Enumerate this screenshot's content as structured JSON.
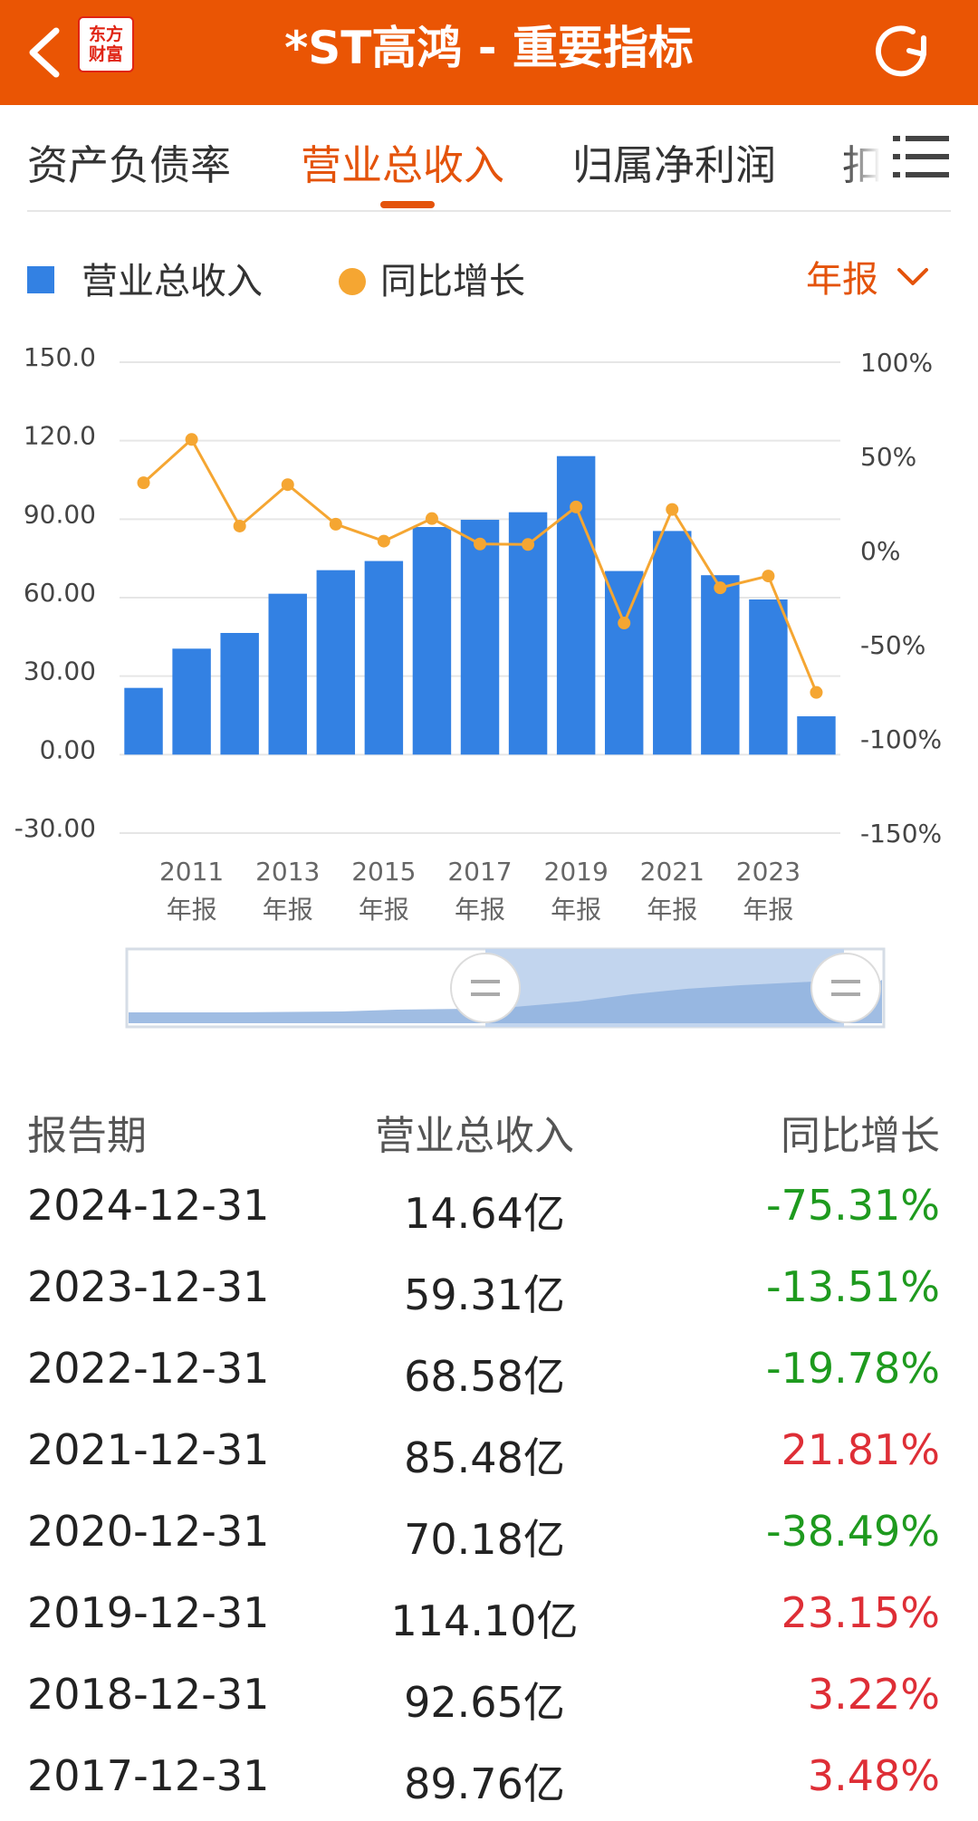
{
  "header": {
    "title": "*ST高鸿 - 重要指标",
    "logo_line1": "东方",
    "logo_line2": "财富"
  },
  "tabs": [
    {
      "label": "资产负债率",
      "active": false
    },
    {
      "label": "营业总收入",
      "active": true
    },
    {
      "label": "归属净利润",
      "active": false
    },
    {
      "label": "扣",
      "active": false
    }
  ],
  "legend": {
    "bar_label": "营业总收入",
    "line_label": "同比增长",
    "period": "年报"
  },
  "colors": {
    "accent": "#ea5504",
    "bar": "#3381e3",
    "line": "#f5a632",
    "positive": "#de2e36",
    "negative": "#1e9a1e"
  },
  "chart_data": {
    "type": "bar",
    "x": [
      "2010",
      "2011",
      "2012",
      "2013",
      "2014",
      "2015",
      "2016",
      "2017",
      "2018",
      "2019",
      "2020",
      "2021",
      "2022",
      "2023",
      "2024"
    ],
    "x_tick_labels": [
      {
        "year": "2011",
        "suffix": "年报"
      },
      {
        "year": "2013",
        "suffix": "年报"
      },
      {
        "year": "2015",
        "suffix": "年报"
      },
      {
        "year": "2017",
        "suffix": "年报"
      },
      {
        "year": "2019",
        "suffix": "年报"
      },
      {
        "year": "2021",
        "suffix": "年报"
      },
      {
        "year": "2023",
        "suffix": "年报"
      }
    ],
    "series": [
      {
        "name": "营业总收入",
        "type": "bar",
        "axis": "left",
        "values": [
          25.5,
          40.5,
          46.5,
          61.5,
          70.5,
          74.0,
          87.0,
          89.76,
          92.65,
          114.1,
          70.18,
          85.48,
          68.58,
          59.31,
          14.64
        ]
      },
      {
        "name": "同比增长",
        "type": "line",
        "axis": "right",
        "values": [
          36,
          59,
          13,
          35,
          14,
          5,
          17,
          3.48,
          3.22,
          23.15,
          -38.49,
          21.81,
          -19.78,
          -13.51,
          -75.31
        ]
      }
    ],
    "y_left": {
      "ticks": [
        "150.0",
        "120.0",
        "90.00",
        "60.00",
        "30.00",
        "0.00",
        "-30.00"
      ],
      "range": [
        -30,
        150
      ]
    },
    "y_right": {
      "ticks": [
        "100%",
        "50%",
        "0%",
        "-50%",
        "-100%",
        "-150%"
      ],
      "range": [
        -150,
        100
      ]
    },
    "grid": true
  },
  "table": {
    "headers": [
      "报告期",
      "营业总收入",
      "同比增长"
    ],
    "rows": [
      {
        "date": "2024-12-31",
        "revenue": "14.64亿",
        "yoy": "-75.31%",
        "dir": "neg"
      },
      {
        "date": "2023-12-31",
        "revenue": "59.31亿",
        "yoy": "-13.51%",
        "dir": "neg"
      },
      {
        "date": "2022-12-31",
        "revenue": "68.58亿",
        "yoy": "-19.78%",
        "dir": "neg"
      },
      {
        "date": "2021-12-31",
        "revenue": "85.48亿",
        "yoy": "21.81%",
        "dir": "pos"
      },
      {
        "date": "2020-12-31",
        "revenue": "70.18亿",
        "yoy": "-38.49%",
        "dir": "neg"
      },
      {
        "date": "2019-12-31",
        "revenue": "114.10亿",
        "yoy": "23.15%",
        "dir": "pos"
      },
      {
        "date": "2018-12-31",
        "revenue": "92.65亿",
        "yoy": "3.22%",
        "dir": "pos"
      },
      {
        "date": "2017-12-31",
        "revenue": "89.76亿",
        "yoy": "3.48%",
        "dir": "pos"
      }
    ]
  }
}
